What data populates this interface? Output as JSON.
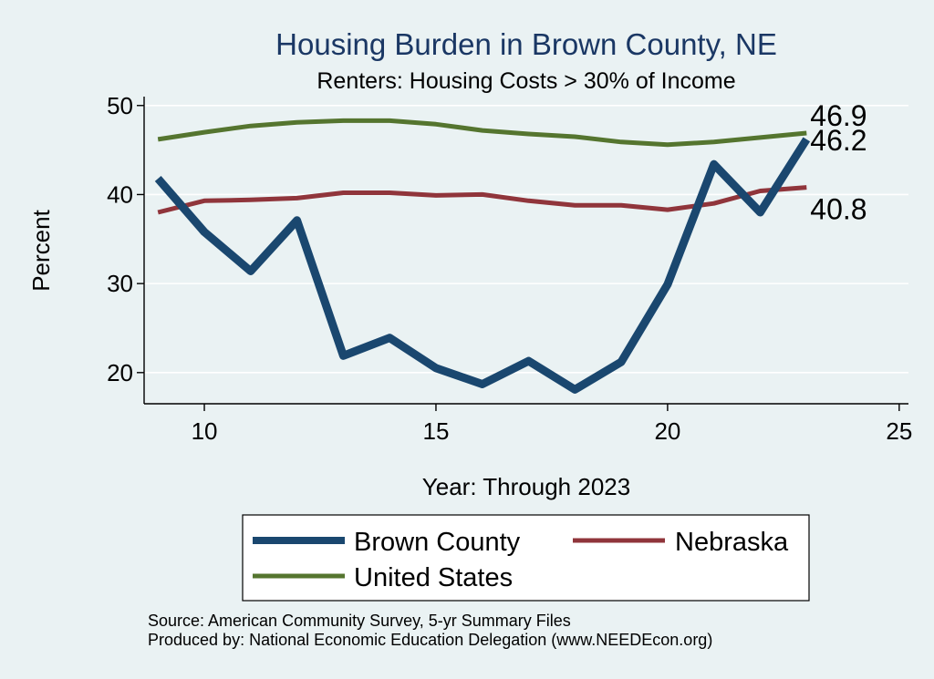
{
  "chart_data": {
    "type": "line",
    "title": "Housing Burden in Brown County, NE",
    "subtitle": "Renters: Housing Costs > 30% of Income",
    "xlabel": "Year: Through 2023",
    "ylabel": "Percent",
    "xlim": [
      8.7,
      25.2
    ],
    "ylim": [
      16.5,
      51.0
    ],
    "xticks": [
      10,
      15,
      20,
      25
    ],
    "yticks": [
      20,
      30,
      40,
      50
    ],
    "x": [
      9,
      10,
      11,
      12,
      13,
      14,
      15,
      16,
      17,
      18,
      19,
      20,
      21,
      22,
      23
    ],
    "series": [
      {
        "name": "Brown County",
        "color": "#1a476f",
        "values": [
          41.8,
          35.8,
          31.4,
          37.1,
          21.9,
          23.9,
          20.5,
          18.7,
          21.3,
          18.1,
          21.2,
          29.9,
          43.4,
          38.0,
          46.2
        ],
        "end_label": "46.2"
      },
      {
        "name": "Nebraska",
        "color": "#90353b",
        "values": [
          38.0,
          39.3,
          39.4,
          39.6,
          40.2,
          40.2,
          39.9,
          40.0,
          39.3,
          38.8,
          38.8,
          38.3,
          39.0,
          40.4,
          40.8
        ],
        "end_label": "40.8"
      },
      {
        "name": "United States",
        "color": "#55752f",
        "values": [
          46.2,
          47.0,
          47.7,
          48.1,
          48.3,
          48.3,
          47.9,
          47.2,
          46.8,
          46.5,
          45.9,
          45.6,
          45.9,
          46.4,
          46.9
        ],
        "end_label": "46.9"
      }
    ],
    "legend": [
      "Brown County",
      "Nebraska",
      "United States"
    ],
    "grid": true
  },
  "notes": {
    "source": "Source: American Community Survey, 5-yr Summary Files",
    "produced": "Produced by: National Economic Education Delegation (www.NEEDEcon.org)"
  }
}
